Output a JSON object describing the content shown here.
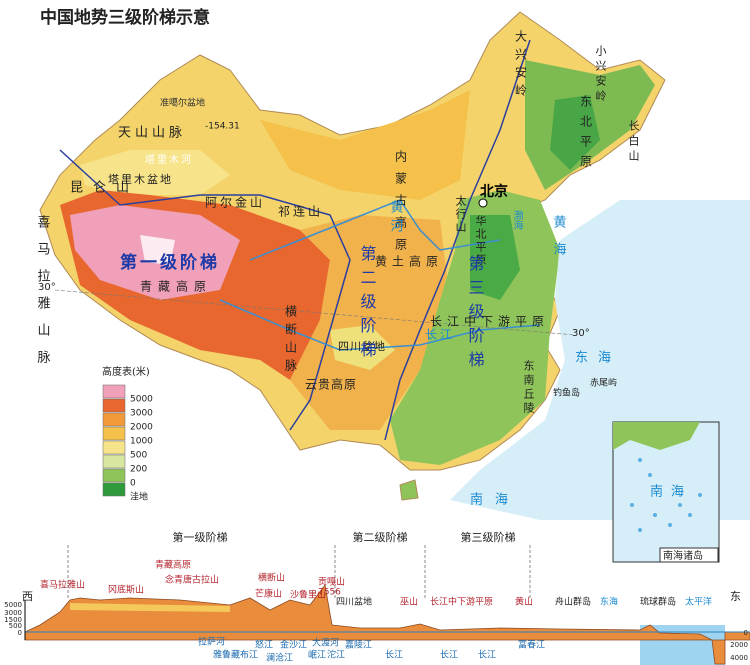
{
  "title": "中国地势三级阶梯示意",
  "map_labels": [
    "天山山脉",
    "准噶尔盆地",
    "塔里木河",
    "塔里木盆地",
    "昆仑山",
    "阿尔金山",
    "祁连山",
    "喜马拉雅山脉",
    "第一级阶梯",
    "青藏高原",
    "横断山脉",
    "内蒙古高原",
    "黄土高原",
    "四川盆地",
    "云贵高原",
    "第二级阶梯",
    "大兴安岭",
    "东北平原",
    "小兴安岭",
    "长白山",
    "北京",
    "华北平原",
    "太行山",
    "第三级阶梯",
    "长江中下游平原",
    "东南丘陵",
    "黄海",
    "渤海",
    "东海",
    "南海",
    "钓鱼岛",
    "赤尾屿",
    "-154.31",
    "30°",
    "30°",
    "黄河",
    "长江"
  ],
  "legend": {
    "title": "高度表(米)",
    "items": [
      "5000",
      "3000",
      "2000",
      "1000",
      "500",
      "200",
      "0",
      "洼地"
    ]
  },
  "inset": {
    "sea": "南海",
    "caption": "南海诸岛"
  },
  "profile": {
    "steps": [
      "第一级阶梯",
      "第二级阶梯",
      "第三级阶梯"
    ],
    "west": "西",
    "east": "东",
    "top_labels": [
      "喜马拉雅山",
      "冈底斯山",
      "青藏高原",
      "念青唐古拉山",
      "横断山",
      "芒康山",
      "沙鲁里山",
      "贡嘎山",
      "7556",
      "四川盆地",
      "巫山",
      "长江中下游平原",
      "黄山",
      "舟山群岛",
      "东海",
      "琉球群岛",
      "太平洋"
    ],
    "bottom_labels": [
      "拉萨河",
      "雅鲁藏布江",
      "怒江",
      "澜沧江",
      "金沙江",
      "大渡河",
      "岷江",
      "沱江",
      "嘉陵江",
      "长江",
      "长江",
      "长江",
      "富春江"
    ],
    "left_ticks": [
      "5000",
      "3000",
      "1500",
      "500",
      "0"
    ],
    "right_ticks": [
      "0",
      "2000",
      "4000"
    ]
  }
}
